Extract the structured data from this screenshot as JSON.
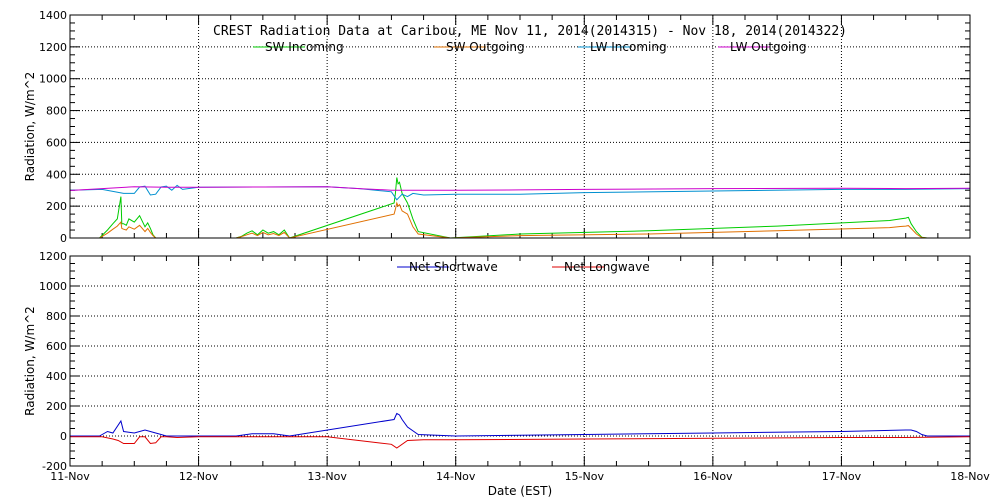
{
  "chart_data": [
    {
      "type": "line",
      "title": "CREST Radiation Data at Caribou, ME   Nov 11, 2014(2014315) - Nov 18, 2014(2014322)",
      "xlabel": "",
      "ylabel": "Radiation, W/m^2",
      "xlim": [
        "2014-11-11 00:00",
        "2014-11-18 00:00"
      ],
      "ylim": [
        0,
        1400
      ],
      "yticks": [
        0,
        200,
        400,
        600,
        800,
        1000,
        1200,
        1400
      ],
      "grid": true,
      "legend": "top-center",
      "series": [
        {
          "name": "SW Incoming",
          "color": "#00cc00",
          "x": [
            "2014-11-11 05:30",
            "2014-11-11 07:00",
            "2014-11-11 08:00",
            "2014-11-11 08:50",
            "2014-11-11 09:30",
            "2014-11-11 09:40",
            "2014-11-11 10:00",
            "2014-11-11 10:30",
            "2014-11-11 11:00",
            "2014-11-11 12:00",
            "2014-11-11 13:00",
            "2014-11-11 14:00",
            "2014-11-11 14:30",
            "2014-11-11 15:00",
            "2014-11-11 15:30",
            "2014-11-11 16:00",
            "2014-11-11 17:00",
            "2014-11-12 07:00",
            "2014-11-12 08:00",
            "2014-11-12 09:00",
            "2014-11-12 10:00",
            "2014-11-12 11:00",
            "2014-11-12 12:00",
            "2014-11-12 13:00",
            "2014-11-12 14:00",
            "2014-11-12 15:00",
            "2014-11-12 16:00",
            "2014-11-12 17:00",
            "2014-11-13 12:30",
            "2014-11-13 12:45",
            "2014-11-13 13:00",
            "2014-11-13 13:15",
            "2014-11-13 13:30",
            "2014-11-13 14:00",
            "2014-11-13 15:00",
            "2014-11-13 16:00",
            "2014-11-13 17:00",
            "2014-11-13 23:00",
            "2014-11-14 12:00",
            "2014-11-15 12:00",
            "2014-11-16 12:00",
            "2014-11-17 09:00",
            "2014-11-17 11:00",
            "2014-11-17 12:00",
            "2014-11-17 12:30",
            "2014-11-17 13:00",
            "2014-11-17 14:00",
            "2014-11-17 15:00",
            "2014-11-17 16:00"
          ],
          "values": [
            0,
            50,
            90,
            120,
            260,
            90,
            90,
            80,
            120,
            100,
            140,
            70,
            95,
            60,
            20,
            0,
            0,
            0,
            10,
            30,
            45,
            20,
            50,
            30,
            40,
            20,
            50,
            0,
            220,
            280,
            380,
            340,
            350,
            280,
            220,
            120,
            40,
            0,
            25,
            45,
            75,
            110,
            120,
            125,
            130,
            90,
            40,
            5,
            0
          ]
        },
        {
          "name": "SW Outgoing",
          "color": "#e07000",
          "x": [
            "2014-11-11 05:30",
            "2014-11-11 07:00",
            "2014-11-11 08:00",
            "2014-11-11 08:50",
            "2014-11-11 09:30",
            "2014-11-11 09:40",
            "2014-11-11 10:00",
            "2014-11-11 10:30",
            "2014-11-11 11:00",
            "2014-11-11 12:00",
            "2014-11-11 13:00",
            "2014-11-11 14:00",
            "2014-11-11 14:30",
            "2014-11-11 15:00",
            "2014-11-11 15:30",
            "2014-11-11 16:00",
            "2014-11-11 17:00",
            "2014-11-12 07:00",
            "2014-11-12 08:00",
            "2014-11-12 09:00",
            "2014-11-12 10:00",
            "2014-11-12 11:00",
            "2014-11-12 12:00",
            "2014-11-12 13:00",
            "2014-11-12 14:00",
            "2014-11-12 15:00",
            "2014-11-12 16:00",
            "2014-11-12 17:00",
            "2014-11-13 12:30",
            "2014-11-13 12:45",
            "2014-11-13 13:00",
            "2014-11-13 13:15",
            "2014-11-13 13:30",
            "2014-11-13 14:00",
            "2014-11-13 15:00",
            "2014-11-13 16:00",
            "2014-11-13 17:00",
            "2014-11-13 23:00",
            "2014-11-14 12:00",
            "2014-11-15 12:00",
            "2014-11-16 12:00",
            "2014-11-17 09:00",
            "2014-11-17 11:00",
            "2014-11-17 12:00",
            "2014-11-17 12:30",
            "2014-11-17 13:00",
            "2014-11-17 14:00",
            "2014-11-17 15:00",
            "2014-11-17 16:00"
          ],
          "values": [
            0,
            30,
            55,
            75,
            100,
            60,
            55,
            50,
            70,
            55,
            80,
            40,
            60,
            35,
            15,
            0,
            0,
            0,
            8,
            20,
            30,
            15,
            35,
            20,
            28,
            15,
            35,
            0,
            150,
            180,
            220,
            200,
            210,
            170,
            150,
            70,
            25,
            0,
            15,
            25,
            45,
            65,
            72,
            75,
            78,
            60,
            25,
            3,
            0
          ]
        },
        {
          "name": "LW Incoming",
          "color": "#0090d0",
          "x": [
            "2014-11-11 00:00",
            "2014-11-11 06:00",
            "2014-11-11 10:00",
            "2014-11-11 12:00",
            "2014-11-11 13:00",
            "2014-11-11 14:00",
            "2014-11-11 15:00",
            "2014-11-11 16:00",
            "2014-11-11 17:00",
            "2014-11-11 18:00",
            "2014-11-11 19:00",
            "2014-11-11 20:00",
            "2014-11-11 21:00",
            "2014-11-12 00:00",
            "2014-11-12 12:00",
            "2014-11-13 00:00",
            "2014-11-13 06:00",
            "2014-11-13 12:00",
            "2014-11-13 13:00",
            "2014-11-13 14:00",
            "2014-11-13 15:00",
            "2014-11-13 16:00",
            "2014-11-13 18:00",
            "2014-11-14 00:00",
            "2014-11-14 12:00",
            "2014-11-15 00:00",
            "2014-11-16 00:00",
            "2014-11-17 00:00",
            "2014-11-17 12:00",
            "2014-11-18 00:00"
          ],
          "values": [
            300,
            305,
            280,
            280,
            320,
            325,
            270,
            275,
            320,
            325,
            300,
            330,
            305,
            318,
            320,
            322,
            310,
            290,
            240,
            275,
            260,
            280,
            270,
            275,
            275,
            285,
            295,
            305,
            305,
            310
          ]
        },
        {
          "name": "LW Outgoing",
          "color": "#cc00cc",
          "x": [
            "2014-11-11 00:00",
            "2014-11-11 06:00",
            "2014-11-11 12:00",
            "2014-11-11 18:00",
            "2014-11-12 00:00",
            "2014-11-12 12:00",
            "2014-11-13 00:00",
            "2014-11-13 06:00",
            "2014-11-13 12:00",
            "2014-11-13 18:00",
            "2014-11-14 00:00",
            "2014-11-14 12:00",
            "2014-11-15 00:00",
            "2014-11-16 00:00",
            "2014-11-17 00:00",
            "2014-11-17 12:00",
            "2014-11-18 00:00"
          ],
          "values": [
            298,
            310,
            322,
            318,
            318,
            320,
            322,
            310,
            300,
            300,
            300,
            302,
            305,
            310,
            312,
            310,
            312
          ]
        }
      ]
    },
    {
      "type": "line",
      "title": "",
      "xlabel": "Date (EST)",
      "ylabel": "Radiation, W/m^2",
      "xlim": [
        "2014-11-11 00:00",
        "2014-11-18 00:00"
      ],
      "ylim": [
        -200,
        1200
      ],
      "yticks": [
        -200,
        0,
        200,
        400,
        600,
        800,
        1000,
        1200
      ],
      "xticks": [
        "11-Nov",
        "12-Nov",
        "13-Nov",
        "14-Nov",
        "15-Nov",
        "16-Nov",
        "17-Nov",
        "18-Nov"
      ],
      "grid": true,
      "legend": "top-center",
      "series": [
        {
          "name": "Net Shortwave",
          "color": "#0000cc",
          "x": [
            "2014-11-11 00:00",
            "2014-11-11 05:30",
            "2014-11-11 07:00",
            "2014-11-11 08:00",
            "2014-11-11 09:30",
            "2014-11-11 10:00",
            "2014-11-11 12:00",
            "2014-11-11 14:00",
            "2014-11-11 16:00",
            "2014-11-11 18:00",
            "2014-11-12 00:00",
            "2014-11-12 07:00",
            "2014-11-12 10:00",
            "2014-11-12 14:00",
            "2014-11-12 17:00",
            "2014-11-13 12:30",
            "2014-11-13 12:45",
            "2014-11-13 13:00",
            "2014-11-13 13:30",
            "2014-11-13 14:00",
            "2014-11-13 15:00",
            "2014-11-13 17:00",
            "2014-11-14 00:00",
            "2014-11-15 00:00",
            "2014-11-16 00:00",
            "2014-11-17 00:00",
            "2014-11-17 12:00",
            "2014-11-17 13:00",
            "2014-11-17 14:00",
            "2014-11-17 15:00",
            "2014-11-17 16:00",
            "2014-11-18 00:00"
          ],
          "values": [
            0,
            0,
            30,
            20,
            100,
            30,
            20,
            40,
            20,
            0,
            0,
            0,
            15,
            15,
            0,
            110,
            130,
            150,
            140,
            110,
            60,
            10,
            0,
            10,
            20,
            30,
            40,
            40,
            30,
            10,
            0,
            0
          ]
        },
        {
          "name": "Net Longwave",
          "color": "#dd0000",
          "x": [
            "2014-11-11 00:00",
            "2014-11-11 06:00",
            "2014-11-11 08:00",
            "2014-11-11 09:00",
            "2014-11-11 10:00",
            "2014-11-11 12:00",
            "2014-11-11 13:00",
            "2014-11-11 14:00",
            "2014-11-11 15:00",
            "2014-11-11 16:00",
            "2014-11-11 17:00",
            "2014-11-11 18:00",
            "2014-11-11 20:00",
            "2014-11-12 00:00",
            "2014-11-12 12:00",
            "2014-11-13 00:00",
            "2014-11-13 12:00",
            "2014-11-13 13:00",
            "2014-11-13 15:00",
            "2014-11-13 18:00",
            "2014-11-14 00:00",
            "2014-11-15 00:00",
            "2014-11-16 00:00",
            "2014-11-17 00:00",
            "2014-11-17 12:00",
            "2014-11-18 00:00"
          ],
          "values": [
            -5,
            -5,
            -20,
            -30,
            -50,
            -50,
            -5,
            -5,
            -50,
            -45,
            -5,
            -5,
            -10,
            -5,
            -5,
            -5,
            -55,
            -80,
            -30,
            -25,
            -25,
            -20,
            -15,
            -10,
            -10,
            -5
          ]
        }
      ]
    }
  ]
}
